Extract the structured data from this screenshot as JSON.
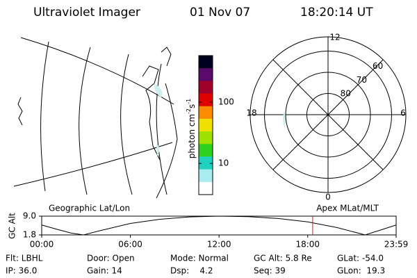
{
  "header": {
    "title": "Ultraviolet Imager",
    "date": "01 Nov 07",
    "time": "18:20:14 UT"
  },
  "colorbar": {
    "label": [
      "photon cm",
      "-2",
      "s",
      "-1"
    ],
    "log_scale": true,
    "ylim": [
      3.1,
      575
    ],
    "yticks": [
      10,
      100
    ],
    "colors": [
      "#000020",
      "#5a0a6a",
      "#a0002a",
      "#e00000",
      "#ff8c00",
      "#f0e000",
      "#a0e000",
      "#30d020",
      "#20d0c0",
      "#a8ecf0",
      "#ffffff"
    ]
  },
  "polar": {
    "mlt_labels": [
      "12",
      "6",
      "0",
      "18"
    ],
    "lat_rings": [
      60,
      70,
      80
    ]
  },
  "orbit": {
    "type": "line",
    "ylabel": "GC Alt",
    "left_label": "Geographic Lat/Lon",
    "right_label": "Apex MLat/MLT",
    "xlim": [
      0,
      1439
    ],
    "ylim": [
      1.8,
      9.0
    ],
    "xticks": [
      {
        "value": 0,
        "label": "00:00"
      },
      {
        "value": 360,
        "label": "06:00"
      },
      {
        "value": 720,
        "label": "12:00"
      },
      {
        "value": 1080,
        "label": "18:00"
      },
      {
        "value": 1439,
        "label": "23:59"
      }
    ],
    "yticks": [
      {
        "value": 9.0,
        "label": "9.0"
      },
      {
        "value": 1.8,
        "label": "1.8"
      }
    ],
    "x": [
      0,
      60,
      120,
      170,
      240,
      360,
      480,
      600,
      720,
      840,
      960,
      1080,
      1200,
      1313,
      1380,
      1439
    ],
    "values": [
      5.6,
      4.0,
      2.5,
      1.8,
      3.5,
      6.2,
      7.8,
      8.7,
      9.0,
      8.8,
      8.1,
      6.8,
      4.6,
      1.8,
      3.8,
      5.6
    ],
    "color": "#000000",
    "marker_x": 1100,
    "marker_color": "#d02020"
  },
  "footer": {
    "rows": [
      [
        "Flt: LBHL",
        "Door: Open",
        "Mode: Normal",
        "GC Alt: 5.8 Re",
        "GLat: -54.0"
      ],
      [
        "IP: 36.0",
        "Gain: 14",
        "Dsp:    4.2",
        "Seq: 39",
        "GLon:  19.3"
      ]
    ]
  }
}
